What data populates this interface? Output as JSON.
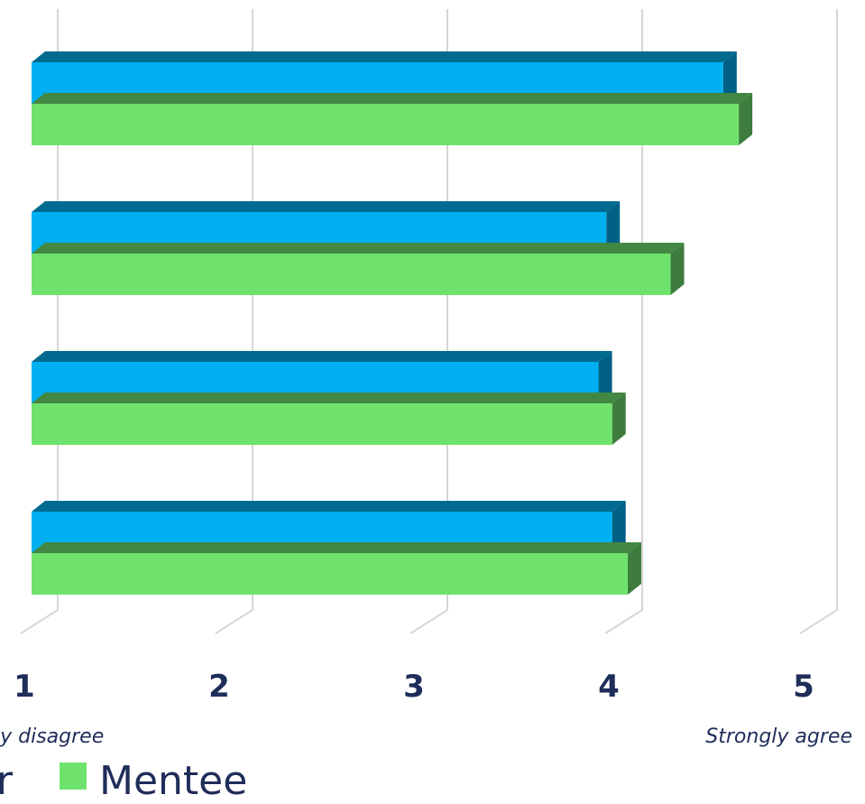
{
  "chart_data": {
    "type": "bar",
    "orientation": "horizontal",
    "style": "3d",
    "xlim": [
      1,
      5
    ],
    "x_ticks": [
      "1",
      "2",
      "3",
      "4",
      "5"
    ],
    "x_end_labels": {
      "left": "ly disagree",
      "right": "Strongly agree"
    },
    "series": [
      {
        "name": "r",
        "color": "#00b0f0",
        "values": [
          4.55,
          3.95,
          3.91,
          3.98
        ]
      },
      {
        "name": "Mentee",
        "color": "#6fe26e",
        "values": [
          4.63,
          4.28,
          3.98,
          4.06
        ]
      }
    ],
    "grid": true,
    "legend_position": "bottom"
  }
}
